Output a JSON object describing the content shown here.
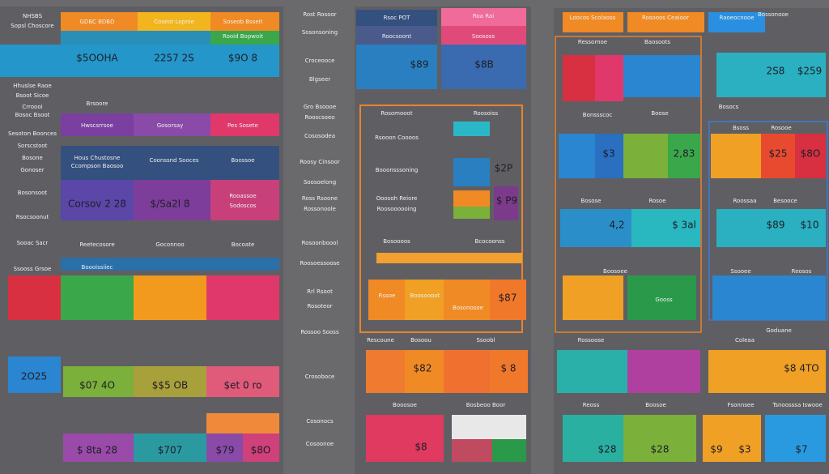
{
  "left": {
    "labels": [
      "NHSBS",
      "Sopsl Choscore",
      "GDBC BDBD",
      "Coseot Lopnie",
      "Soseob Bsseit",
      "Rooid Bopwoit",
      "Hhuslse Raoe",
      "Bsoot Sicoe",
      "Crroooi",
      "Bosoc Bsoot",
      "Brsoore",
      "Hwscsrrsoe",
      "Gosorsay",
      "Pes Sosete",
      "Sesoton Boonces",
      "Sorscstoot",
      "Bosone",
      "Gonoser",
      "Hous Chustosne",
      "Ccompson Baosoo",
      "Coonssnd Sooces",
      "Boossoe",
      "Bosonsoot",
      "Rsocsoonut",
      "Rooassoe",
      "Sodoscos",
      "Sooac Sacr",
      "Reetecosore",
      "Goconnoo",
      "Bocoate",
      "Ssooss Grsoe",
      "Boooissiiec"
    ],
    "figures": [
      "$5OOHA",
      "2257 2S",
      "$9O 8",
      "Corsov 2 28",
      "$/Sa2l 8",
      "2O25",
      "$07 4O",
      "$$5 OB",
      "$et 0 ro",
      "$ 8ta 28",
      "$707",
      "$79",
      "$8O"
    ]
  },
  "middle": {
    "labels": [
      "Rost Rosoor",
      "Sosonsoning",
      "Croceooce",
      "Blgseer",
      "Gro Bsoooe",
      "Rooscsoeo",
      "Cososodea",
      "Roosy Cinsoor",
      "Soosoelong",
      "Ross Rsoone",
      "Rossonoole",
      "Rosoonboool",
      "Roosoessoose",
      "Rrl Rsoot",
      "Rosoteor",
      "Rossoo Sooss",
      "Crosoboce",
      "Cosonocs",
      "Cosoonoe"
    ]
  },
  "center": {
    "labels": [
      "Rsoc POT",
      "Roa Rai",
      "Roocsoont",
      "Soososs",
      "Rosomooot",
      "Roosoiss",
      "Rsooon Coooos",
      "Booonsssoning",
      "Ooosoh Reiore",
      "Roosoooooing",
      "Bosoooos",
      "Bcocoonss",
      "Rssoe",
      "Boosoooot",
      "Bosonosoe",
      "Rescoune",
      "Bosoou",
      "Ssoobl",
      "Booosoe",
      "Bosbeoo Boor"
    ],
    "figures": [
      "$89",
      "$8B",
      "$2P",
      "$ P9",
      "$87",
      "$82",
      "$ 8",
      "$8"
    ]
  },
  "right": {
    "labels": [
      "Loocos Scolaoss",
      "Rosooos Ceaioor",
      "Raoeocnooe",
      "Bossonooe",
      "Ressornoe",
      "Baosoots",
      "Bonssscoc",
      "Boose",
      "Bosocs",
      "Bsoss",
      "Rosooe",
      "Bosose",
      "Rosoe",
      "Roossaa",
      "Besooce",
      "Boosoee",
      "Gooss",
      "Ssooee",
      "Reosos",
      "Rossoose",
      "Coleaa",
      "Goduane",
      "Reoss",
      "Boosoe",
      "Fsonnsee",
      "Tsnoosssa Iswooe"
    ],
    "figures": [
      "2S8",
      "$259",
      "$3",
      "2,83",
      "$25",
      "$8O",
      "4,2",
      "$ 3al",
      "$89",
      "$10",
      "$8 4TO",
      "$28",
      "$28",
      "$9",
      "$3",
      "$7"
    ]
  }
}
